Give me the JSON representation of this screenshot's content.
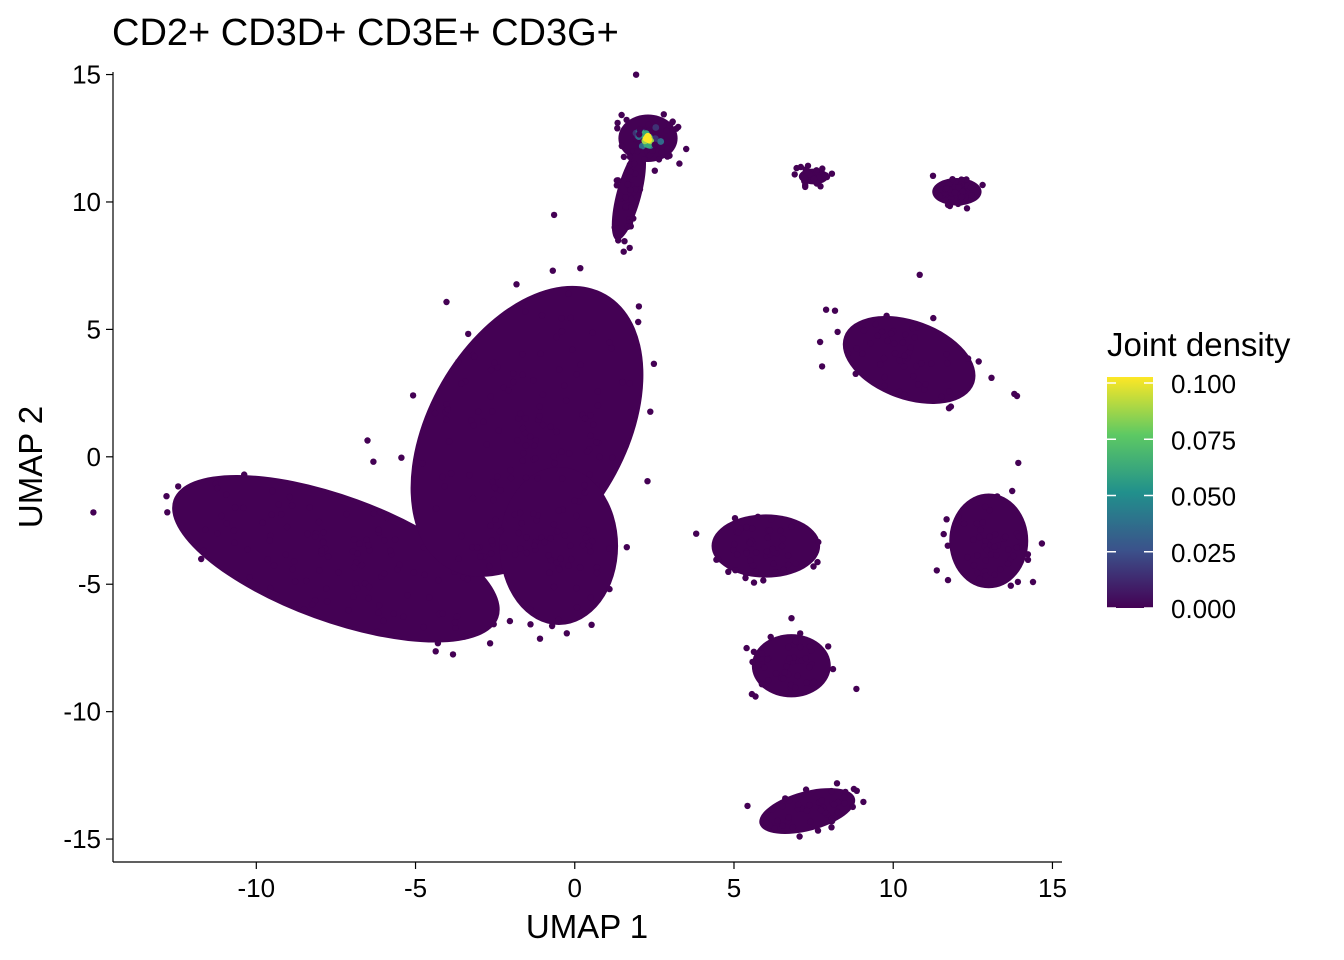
{
  "chart_data": {
    "type": "scatter",
    "title": "CD2+ CD3D+ CD3E+ CD3G+",
    "xlabel": "UMAP 1",
    "ylabel": "UMAP 2",
    "xlim": [
      -14.5,
      15.3
    ],
    "ylim": [
      -15.9,
      15.1
    ],
    "xticks": [
      -10,
      -5,
      0,
      5,
      10,
      15
    ],
    "xtick_labels": [
      "-10",
      "-5",
      "0",
      "5",
      "10",
      "15"
    ],
    "yticks": [
      -15,
      -10,
      -5,
      0,
      5,
      10,
      15
    ],
    "ytick_labels": [
      "-15",
      "-10",
      "-5",
      "0",
      "5",
      "10",
      "15"
    ],
    "grid": false,
    "legend": {
      "title": "Joint density",
      "placement": "right",
      "type": "colorbar",
      "values": [
        0.0,
        0.025,
        0.05,
        0.075,
        0.1
      ],
      "labels": [
        "0.000",
        "0.025",
        "0.050",
        "0.075",
        "0.100"
      ],
      "range": [
        0,
        0.1
      ],
      "palette": [
        "#440154",
        "#3B528B",
        "#21908C",
        "#5DC963",
        "#FDE725"
      ]
    },
    "clusters": [
      {
        "center": [
          -7.5,
          -4.0
        ],
        "spread": [
          3.5,
          1.6
        ],
        "angle": -20,
        "density": 0.0
      },
      {
        "center": [
          -1.5,
          1.0
        ],
        "spread": [
          2.0,
          4.0
        ],
        "angle": -30,
        "density": 0.0
      },
      {
        "center": [
          -0.5,
          -3.5
        ],
        "spread": [
          1.2,
          2.0
        ],
        "angle": 0,
        "density": 0.0
      },
      {
        "center": [
          2.3,
          12.5
        ],
        "spread": [
          0.6,
          0.6
        ],
        "angle": 0,
        "density": 0.1
      },
      {
        "center": [
          1.7,
          10.3
        ],
        "spread": [
          0.25,
          1.2
        ],
        "angle": -15,
        "density": 0.0
      },
      {
        "center": [
          6.0,
          -3.5
        ],
        "spread": [
          1.1,
          0.8
        ],
        "angle": 0,
        "density": 0.0
      },
      {
        "center": [
          6.8,
          -8.2
        ],
        "spread": [
          0.8,
          0.8
        ],
        "angle": 0,
        "density": 0.0
      },
      {
        "center": [
          7.3,
          -13.9
        ],
        "spread": [
          1.0,
          0.5
        ],
        "angle": 15,
        "density": 0.0
      },
      {
        "center": [
          10.5,
          3.8
        ],
        "spread": [
          1.4,
          1.0
        ],
        "angle": -20,
        "density": 0.0
      },
      {
        "center": [
          13.0,
          -3.3
        ],
        "spread": [
          0.8,
          1.2
        ],
        "angle": 0,
        "density": 0.0
      },
      {
        "center": [
          12.0,
          10.4
        ],
        "spread": [
          0.5,
          0.35
        ],
        "angle": 0,
        "density": 0.0
      },
      {
        "center": [
          7.5,
          11.0
        ],
        "spread": [
          0.3,
          0.2
        ],
        "angle": 0,
        "density": 0.0
      }
    ]
  }
}
